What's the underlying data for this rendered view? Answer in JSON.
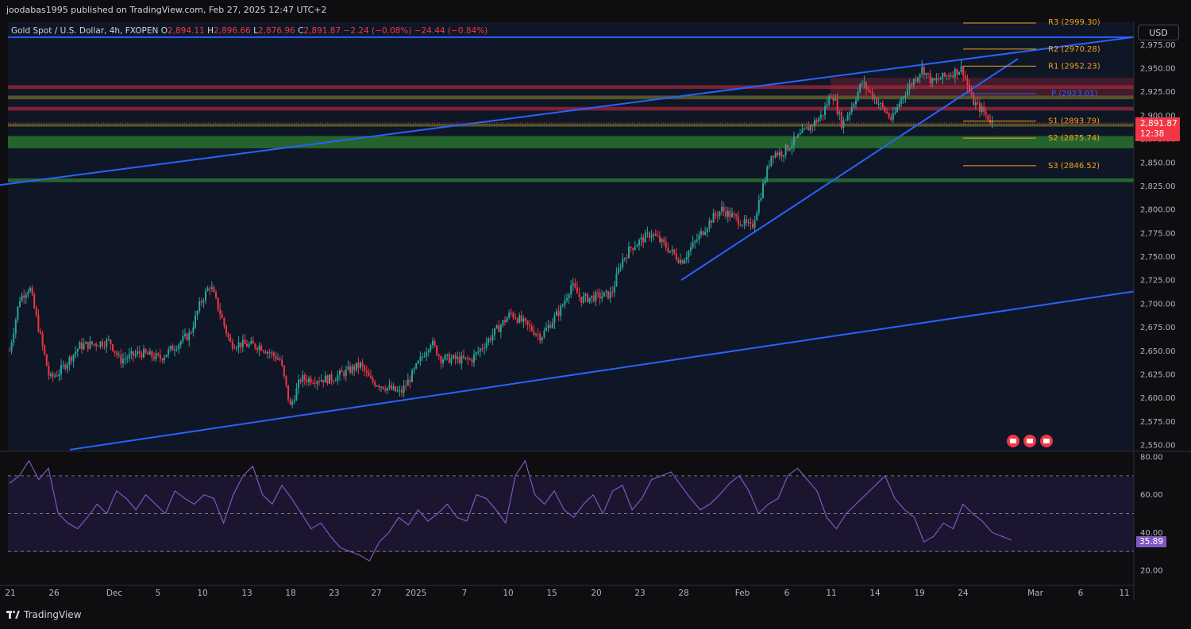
{
  "header": {
    "publisher": "joodabas1995 published on TradingView.com, Feb 27, 2025 12:47 UTC+2"
  },
  "symbol": {
    "name": "Gold Spot / U.S. Dollar, 4h, FXOPEN",
    "open_label": "O",
    "open": "2,894.11",
    "high_label": "H",
    "high": "2,896.66",
    "low_label": "L",
    "low": "2,876.96",
    "close_label": "C",
    "close": "2,891.87",
    "change": "−2.24 (−0.08%)",
    "change2": "−24.44 (−0.84%)"
  },
  "toolbar": {
    "currency": "USD"
  },
  "price_badge": {
    "price": "2,891.87",
    "countdown": "12:38"
  },
  "rsi_badge": {
    "value": "35.89"
  },
  "footer": {
    "brand": "TradingView"
  },
  "colors": {
    "up": "#26a69a",
    "down": "#f23645",
    "trendline": "#2962ff",
    "pivot": "#f7a21b",
    "pivot_p": "#2962ff",
    "rsi": "#7e57c2",
    "supply_zone": "#a0283a",
    "demand_zone": "#2e7d32",
    "mixed_zone": "#6b6a2a"
  },
  "icons": [
    "flag-us-icon",
    "tradingview-logo-icon"
  ],
  "chart_data": [
    {
      "type": "candlestick",
      "title": "Gold Spot / U.S. Dollar, 4h, FXOPEN",
      "ylabel": "USD",
      "ylim": [
        2540,
        2985
      ],
      "y_ticks": [
        "2,550.00",
        "2,575.00",
        "2,600.00",
        "2,625.00",
        "2,650.00",
        "2,675.00",
        "2,700.00",
        "2,725.00",
        "2,750.00",
        "2,775.00",
        "2,800.00",
        "2,825.00",
        "2,850.00",
        "2,875.00",
        "2,900.00",
        "2,925.00",
        "2,950.00",
        "2,975.00"
      ],
      "x_ticks": [
        "21",
        "26",
        "Dec",
        "5",
        "10",
        "13",
        "18",
        "23",
        "27",
        "2025",
        "7",
        "10",
        "15",
        "20",
        "23",
        "28",
        "Feb",
        "6",
        "11",
        "14",
        "19",
        "24",
        "Mar",
        "6",
        "11"
      ],
      "price_path": [
        [
          "Nov 21",
          2650
        ],
        [
          "Nov 22",
          2705
        ],
        [
          "Nov 23",
          2718
        ],
        [
          "Nov 25",
          2620
        ],
        [
          "Nov 26",
          2628
        ],
        [
          "Nov 28",
          2655
        ],
        [
          "Dec 1",
          2660
        ],
        [
          "Dec 2",
          2640
        ],
        [
          "Dec 4",
          2648
        ],
        [
          "Dec 6",
          2642
        ],
        [
          "Dec 9",
          2668
        ],
        [
          "Dec 10",
          2700
        ],
        [
          "Dec 11",
          2720
        ],
        [
          "Dec 12",
          2690
        ],
        [
          "Dec 13",
          2658
        ],
        [
          "Dec 16",
          2655
        ],
        [
          "Dec 18",
          2640
        ],
        [
          "Dec 19",
          2590
        ],
        [
          "Dec 20",
          2620
        ],
        [
          "Dec 23",
          2620
        ],
        [
          "Dec 26",
          2635
        ],
        [
          "Dec 27",
          2618
        ],
        [
          "Dec 30",
          2605
        ],
        [
          "Dec 31",
          2622
        ],
        [
          "Jan 2",
          2660
        ],
        [
          "Jan 3",
          2642
        ],
        [
          "Jan 6",
          2640
        ],
        [
          "Jan 8",
          2665
        ],
        [
          "Jan 10",
          2690
        ],
        [
          "Jan 13",
          2665
        ],
        [
          "Jan 15",
          2695
        ],
        [
          "Jan 16",
          2720
        ],
        [
          "Jan 17",
          2705
        ],
        [
          "Jan 20",
          2710
        ],
        [
          "Jan 21",
          2745
        ],
        [
          "Jan 22",
          2760
        ],
        [
          "Jan 24",
          2775
        ],
        [
          "Jan 27",
          2745
        ],
        [
          "Jan 28",
          2760
        ],
        [
          "Jan 30",
          2790
        ],
        [
          "Jan 31",
          2800
        ],
        [
          "Feb 3",
          2780
        ],
        [
          "Feb 4",
          2820
        ],
        [
          "Feb 5",
          2860
        ],
        [
          "Feb 6",
          2860
        ],
        [
          "Feb 7",
          2870
        ],
        [
          "Feb 10",
          2900
        ],
        [
          "Feb 11",
          2925
        ],
        [
          "Feb 12",
          2890
        ],
        [
          "Feb 13",
          2910
        ],
        [
          "Feb 14",
          2935
        ],
        [
          "Feb 17",
          2895
        ],
        [
          "Feb 18",
          2920
        ],
        [
          "Feb 19",
          2935
        ],
        [
          "Feb 20",
          2950
        ],
        [
          "Feb 21",
          2935
        ],
        [
          "Feb 24",
          2950
        ],
        [
          "Feb 25",
          2915
        ],
        [
          "Feb 26",
          2905
        ],
        [
          "Feb 27",
          2891.87
        ]
      ],
      "pivot_levels": [
        {
          "name": "R3",
          "value": 2999.3,
          "label": "R3 (2999.30)"
        },
        {
          "name": "R2",
          "value": 2970.28,
          "label": "R2 (2970.28)"
        },
        {
          "name": "R1",
          "value": 2952.23,
          "label": "R1 (2952.23)"
        },
        {
          "name": "P",
          "value": 2923.01,
          "label": "P (2923.01)"
        },
        {
          "name": "S1",
          "value": 2893.79,
          "label": "S1 (2893.79)"
        },
        {
          "name": "S2",
          "value": 2875.74,
          "label": "S2 (2875.74)"
        },
        {
          "name": "S3",
          "value": 2846.52,
          "label": "S3 (2846.52)"
        }
      ],
      "zones": [
        {
          "kind": "supply",
          "from": 2928,
          "to": 2932
        },
        {
          "kind": "supply",
          "from": 2905,
          "to": 2909
        },
        {
          "kind": "mixed",
          "from": 2917,
          "to": 2921
        },
        {
          "kind": "mixed",
          "from": 2888,
          "to": 2891
        },
        {
          "kind": "demand",
          "from": 2865,
          "to": 2878
        },
        {
          "kind": "demand",
          "from": 2829,
          "to": 2833
        }
      ],
      "last_price": 2891.87
    },
    {
      "type": "line",
      "title": "RSI",
      "ylim": [
        12,
        84
      ],
      "y_ticks": [
        "20.00",
        "40.00",
        "60.00",
        "80.00"
      ],
      "bands": [
        30,
        50,
        70
      ],
      "last_value": 35.89,
      "values": [
        66,
        70,
        78,
        68,
        74,
        50,
        45,
        42,
        48,
        55,
        50,
        62,
        58,
        52,
        60,
        55,
        50,
        62,
        58,
        55,
        60,
        58,
        45,
        60,
        70,
        75,
        60,
        55,
        65,
        58,
        50,
        42,
        45,
        38,
        32,
        30,
        28,
        25,
        35,
        40,
        48,
        44,
        52,
        46,
        50,
        55,
        48,
        46,
        60,
        58,
        52,
        45,
        70,
        78,
        60,
        55,
        62,
        52,
        48,
        55,
        60,
        50,
        62,
        65,
        52,
        58,
        68,
        70,
        72,
        65,
        58,
        52,
        55,
        60,
        66,
        70,
        62,
        50,
        55,
        58,
        70,
        74,
        68,
        62,
        48,
        42,
        50,
        55,
        60,
        65,
        70,
        58,
        52,
        48,
        35,
        38,
        45,
        42,
        55,
        50,
        46,
        40,
        38,
        36
      ]
    }
  ]
}
